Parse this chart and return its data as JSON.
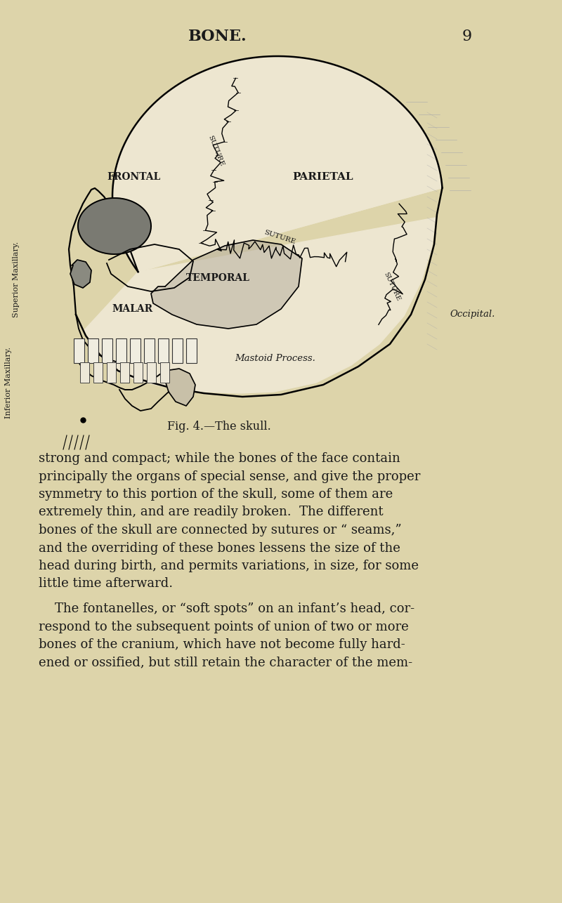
{
  "background_color": "#ddd4aa",
  "title_text": "BONE.",
  "page_number": "9",
  "figure_caption": "Fig. 4.—The skull.",
  "text_color": "#1a1a1a",
  "lines_p1": [
    "strong and compact; while the bones of the face contain",
    "principally the organs of special sense, and give the proper",
    "symmetry to this portion of the skull, some of them are",
    "extremely thin, and are readily broken.  The different",
    "bones of the skull are connected by sutures or “ seams,”",
    "and the overriding of these bones lessens the size of the",
    "head during birth, and permits variations, in size, for some",
    "little time afterward."
  ],
  "lines_p2": [
    "    The fontanelles, or “soft spots” on an infant’s head, cor-",
    "respond to the subsequent points of union of two or more",
    "bones of the cranium, which have not become fully hard-",
    "ened or ossified, but still retain the character of the mem-"
  ]
}
